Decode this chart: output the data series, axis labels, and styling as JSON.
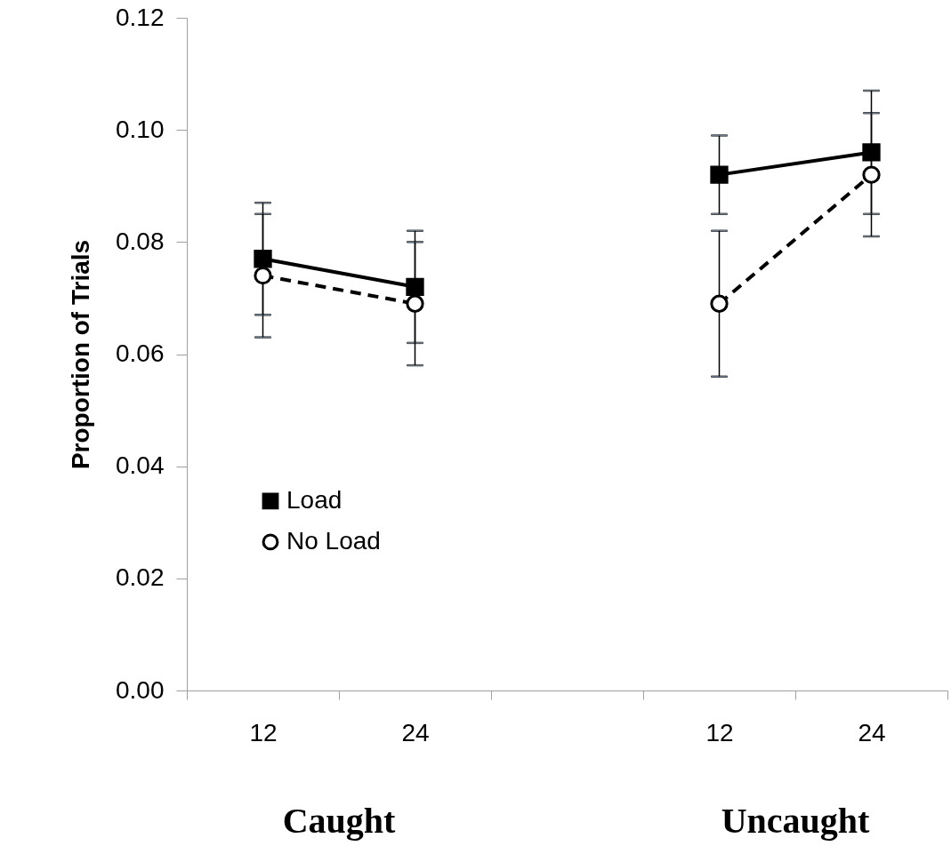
{
  "chart_data": {
    "type": "line",
    "ylabel": "Proportion of Trials",
    "categories": [
      "12",
      "24",
      null,
      "12",
      "24"
    ],
    "series": [
      {
        "name": "Load",
        "color": "#000000",
        "marker": "square",
        "line_style": "solid",
        "values": [
          0.077,
          0.072,
          null,
          0.092,
          0.096
        ],
        "errors": [
          0.01,
          0.01,
          null,
          0.007,
          0.011
        ]
      },
      {
        "name": "No Load",
        "color": "#000000",
        "marker": "circle",
        "line_style": "dashed",
        "values": [
          0.074,
          0.069,
          null,
          0.069,
          0.092
        ],
        "errors": [
          0.011,
          0.011,
          null,
          0.013,
          0.011
        ]
      }
    ],
    "ylim": [
      0,
      0.12
    ],
    "yticks": [
      {
        "value": 0,
        "label": "0.00"
      },
      {
        "value": 0.02,
        "label": "0.02"
      },
      {
        "value": 0.04,
        "label": "0.04"
      },
      {
        "value": 0.06,
        "label": "0.06"
      },
      {
        "value": 0.08,
        "label": "0.08"
      },
      {
        "value": 0.1,
        "label": "0.10"
      },
      {
        "value": 0.12,
        "label": "0.12"
      }
    ],
    "grid": false,
    "legend": "left",
    "annotations": [
      "Caught",
      "Uncaught"
    ]
  }
}
